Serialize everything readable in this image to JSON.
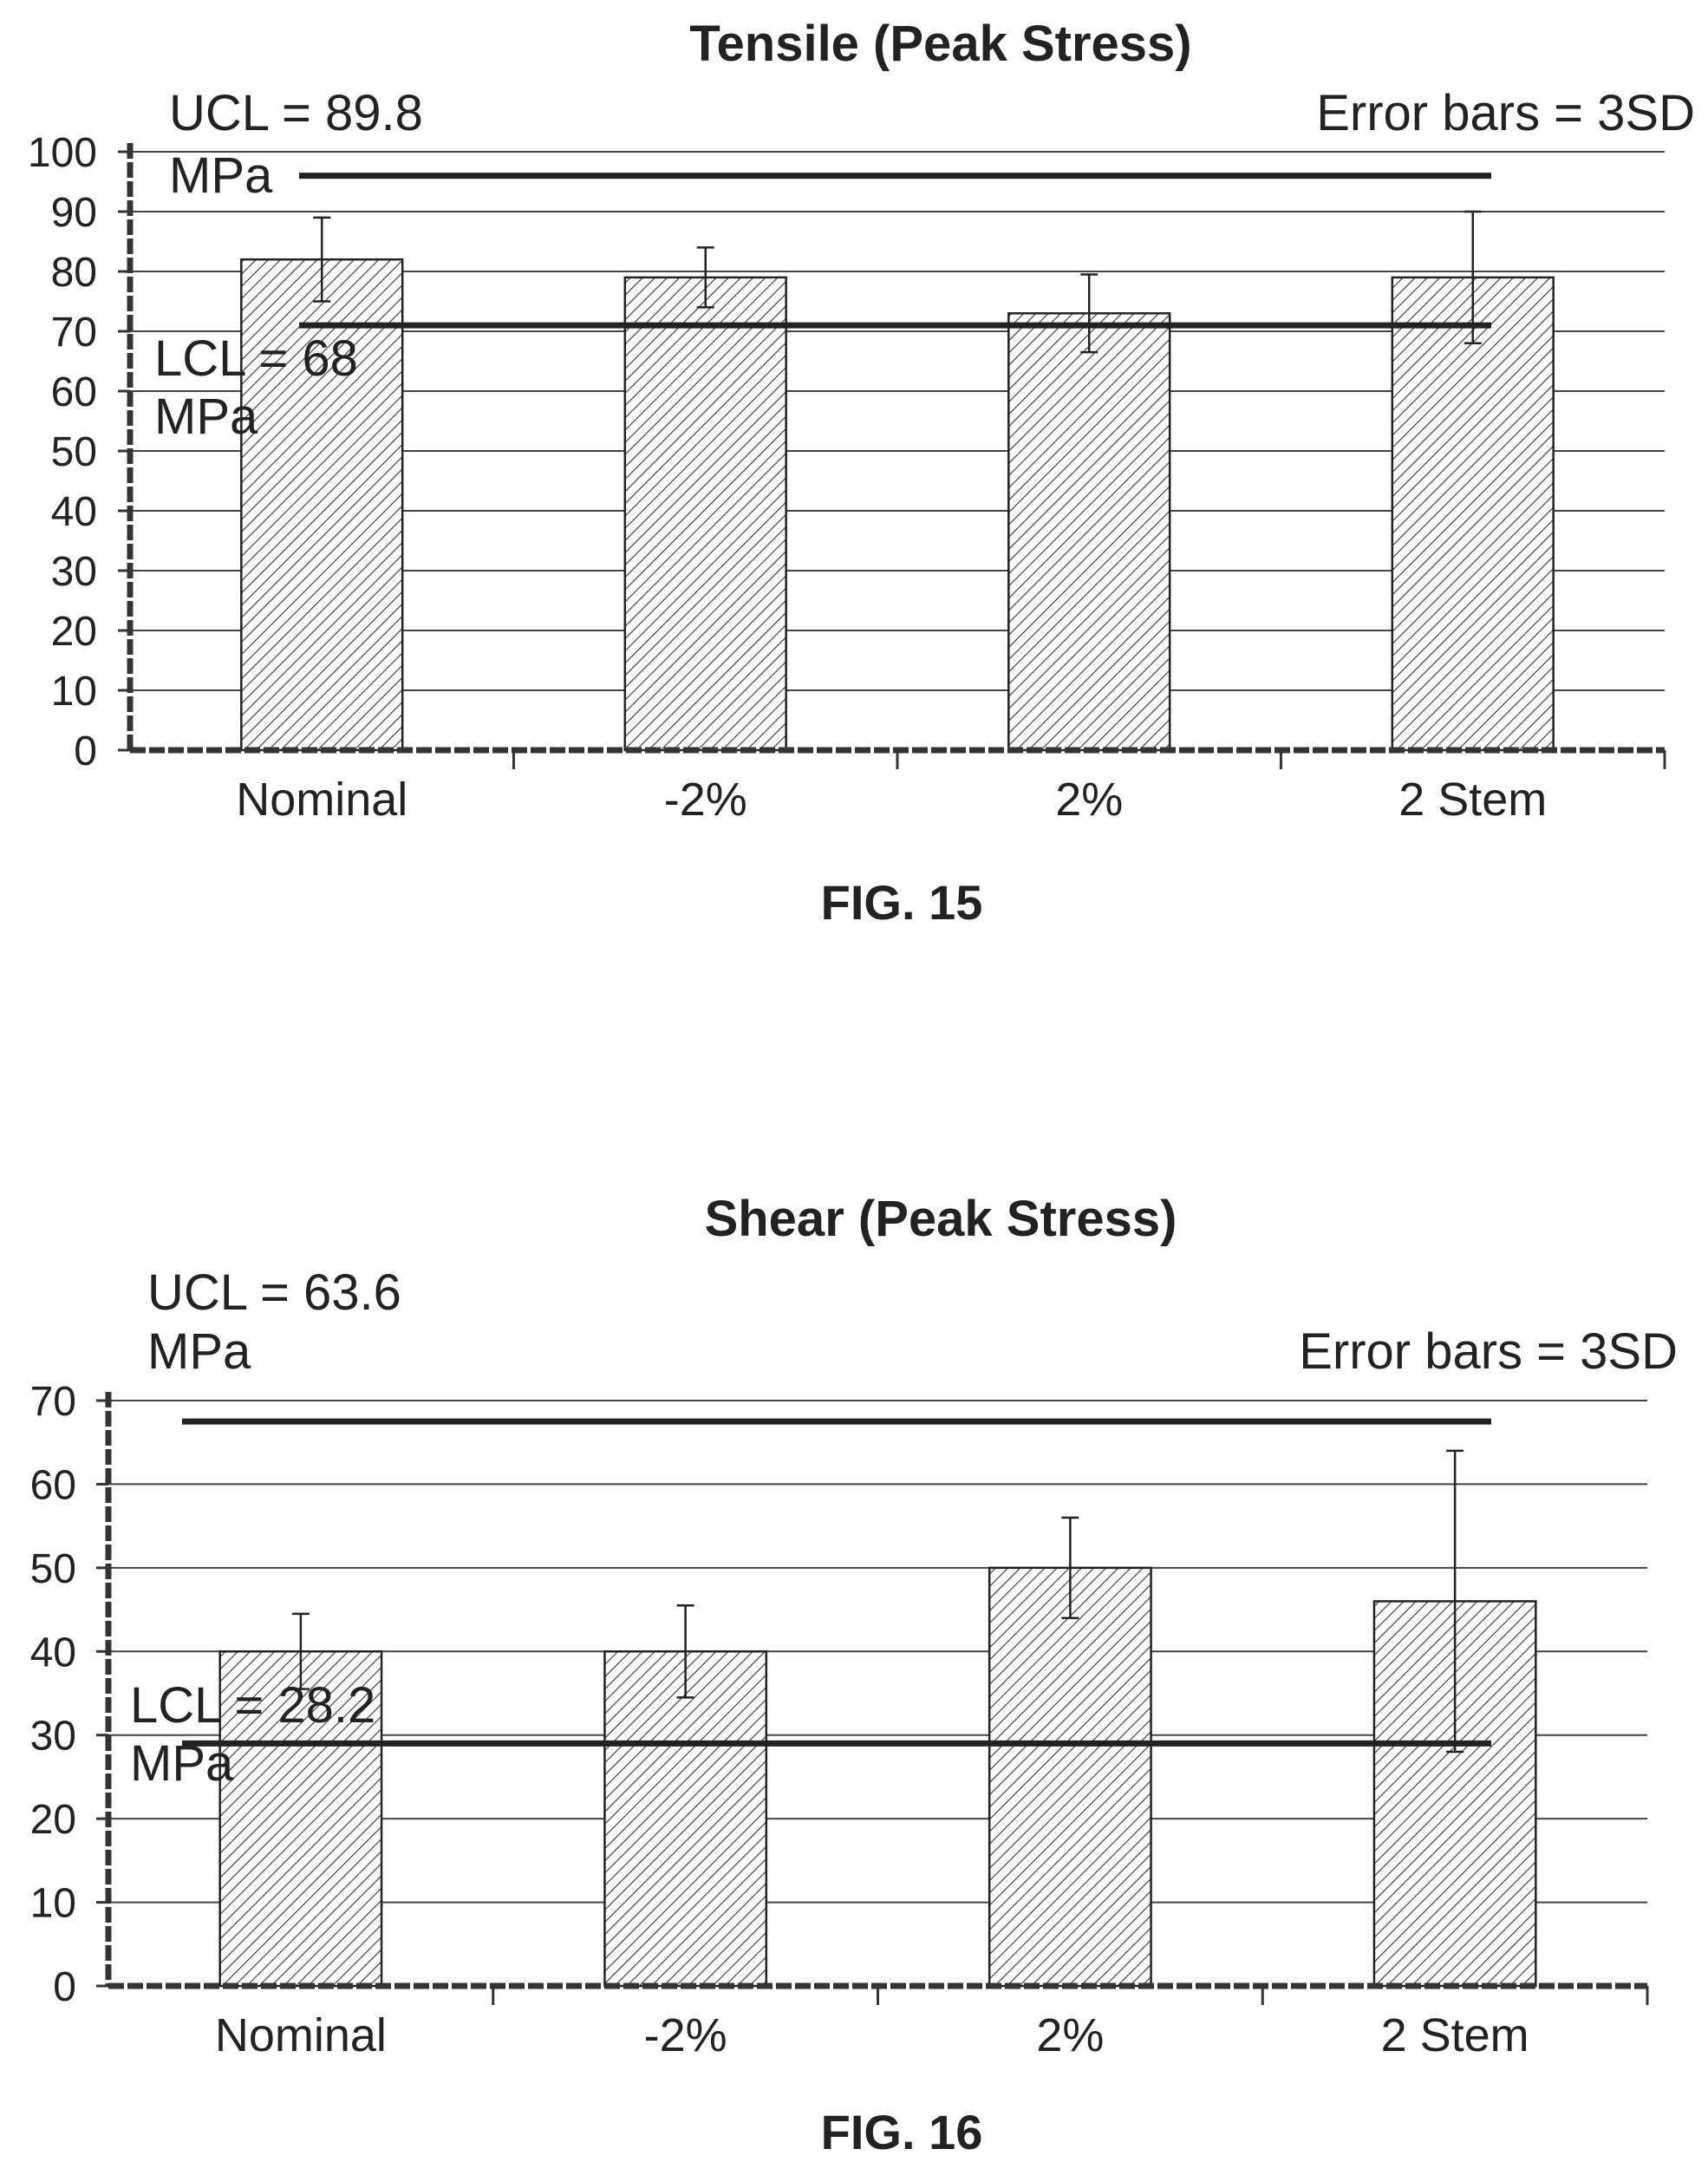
{
  "chart_data": [
    {
      "type": "bar",
      "title": "Tensile (Peak Stress)",
      "figure_label": "FIG. 15",
      "categories": [
        "Nominal",
        "-2%",
        "2%",
        "2 Stem"
      ],
      "values": [
        82,
        79,
        73,
        79
      ],
      "error": [
        7,
        5,
        6.5,
        11
      ],
      "error_note": "Error bars = 3SD",
      "ylim": [
        0,
        100
      ],
      "yticks": [
        0,
        10,
        20,
        30,
        40,
        50,
        60,
        70,
        80,
        90,
        100
      ],
      "grid": true,
      "ucl": {
        "value": 96,
        "label_line1": "UCL = 89.8",
        "label_line2": "MPa"
      },
      "lcl": {
        "value": 71,
        "label_line1": "LCL = 68",
        "label_line2": "MPa"
      }
    },
    {
      "type": "bar",
      "title": "Shear (Peak Stress)",
      "figure_label": "FIG. 16",
      "categories": [
        "Nominal",
        "-2%",
        "2%",
        "2 Stem"
      ],
      "values": [
        40,
        40,
        50,
        46
      ],
      "error": [
        4.5,
        5.5,
        6,
        18
      ],
      "error_note": "Error bars = 3SD",
      "ylim": [
        0,
        70
      ],
      "yticks": [
        0,
        10,
        20,
        30,
        40,
        50,
        60,
        70
      ],
      "grid": true,
      "ucl": {
        "value": 67.5,
        "label_line1": "UCL = 63.6",
        "label_line2": "MPa"
      },
      "lcl": {
        "value": 29,
        "label_line1": "LCL = 28.2",
        "label_line2": "MPa"
      }
    }
  ]
}
